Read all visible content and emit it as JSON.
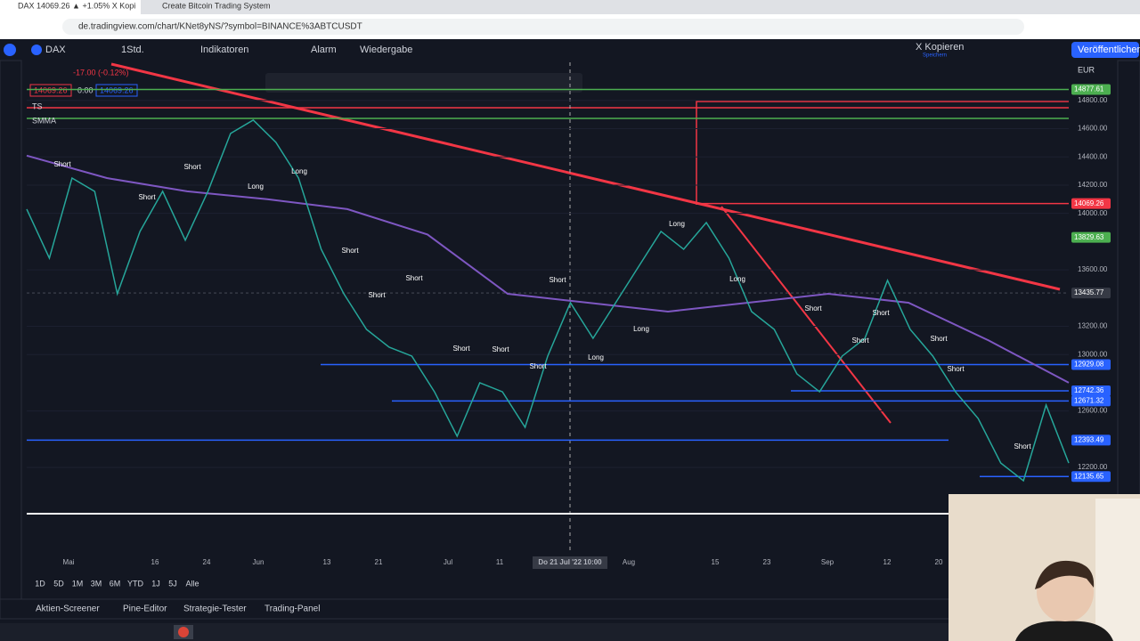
{
  "browser": {
    "tabs": [
      "DAX 14069.26 ▲ +1.05% X Kopi",
      "Create Bitcoin Trading System"
    ],
    "url": "de.tradingview.com/chart/KNet8yNS/?symbol=BINANCE%3ABTCUSDT"
  },
  "toolbar": {
    "symbol": "DAX",
    "interval": "1Std.",
    "indicators": "Indikatoren",
    "alarm": "Alarm",
    "replay": "Wiedergabe",
    "copy": "X Kopieren",
    "saved": "Speichern",
    "publish": "Veröffentlichen"
  },
  "legend": {
    "change": "-17.00 (-0.12%)",
    "bid": "14069.26",
    "spread": "0.00",
    "ask": "14069.26",
    "ts": "TS",
    "smma": "SMMA"
  },
  "chart": {
    "currency": "EUR",
    "ylim": [
      11885,
      15070
    ],
    "yticks": [
      {
        "value": 14800,
        "label": "14800.00"
      },
      {
        "value": 14600,
        "label": "14600.00"
      },
      {
        "value": 14400,
        "label": "14400.00"
      },
      {
        "value": 14200,
        "label": "14200.00"
      },
      {
        "value": 14000,
        "label": "14000.00"
      },
      {
        "value": 13600,
        "label": "13600.00"
      },
      {
        "value": 13200,
        "label": "13200.00"
      },
      {
        "value": 13000,
        "label": "13000.00"
      },
      {
        "value": 12600,
        "label": "12600.00"
      },
      {
        "value": 12200,
        "label": "12200.00"
      }
    ],
    "price_labels": [
      {
        "value": 14877.61,
        "color": "#4caf50"
      },
      {
        "value": 14069.26,
        "color": "#f23645"
      },
      {
        "value": 13829.63,
        "color": "#4caf50"
      },
      {
        "value": 13435.77,
        "color": "#363a45"
      },
      {
        "value": 12929.08,
        "color": "#2962ff"
      },
      {
        "value": 12742.36,
        "color": "#2962ff"
      },
      {
        "value": 12671.32,
        "color": "#2962ff"
      },
      {
        "value": 12393.49,
        "color": "#2962ff"
      },
      {
        "value": 12135.65,
        "color": "#2962ff"
      }
    ],
    "price": [
      14030,
      13683,
      14250,
      14156,
      13430,
      13872,
      14156,
      13810,
      14156,
      14566,
      14661,
      14503,
      14250,
      13746,
      13430,
      13178,
      13052,
      12989,
      12736,
      12421,
      12800,
      12736,
      12484,
      12989,
      13367,
      13115,
      13367,
      13620,
      13872,
      13746,
      13935,
      13683,
      13304,
      13178,
      12863,
      12736,
      12989,
      13115,
      13525,
      13178,
      12989,
      12736,
      12547,
      12231,
      12106,
      12642,
      12231
    ],
    "smma": [
      14409,
      14250,
      14156,
      14100,
      14030,
      13850,
      13430,
      13367,
      13304,
      13367,
      13430,
      13367,
      13100,
      12800
    ],
    "xlabels": [
      "Mai",
      "16",
      "24",
      "Jun",
      "13",
      "21",
      "Jul",
      "11",
      "Do 21 Jul '22  10:00",
      "Aug",
      "15",
      "23",
      "Sep",
      "12",
      "20"
    ],
    "annotations": [
      "Short",
      "Short",
      "Short",
      "Long",
      "Long",
      "Short",
      "Short",
      "Short",
      "Short",
      "Short",
      "Short",
      "Short",
      "Long",
      "Long",
      "Long",
      "Long",
      "Short",
      "Short",
      "Short",
      "Short",
      "Short",
      "Short"
    ]
  },
  "ranges": [
    "1D",
    "5D",
    "1M",
    "3M",
    "6M",
    "YTD",
    "1J",
    "5J",
    "Alle"
  ],
  "bottom_tabs": [
    "Aktien-Screener",
    "Pine-Editor",
    "Strategie-Tester",
    "Trading-Panel"
  ]
}
